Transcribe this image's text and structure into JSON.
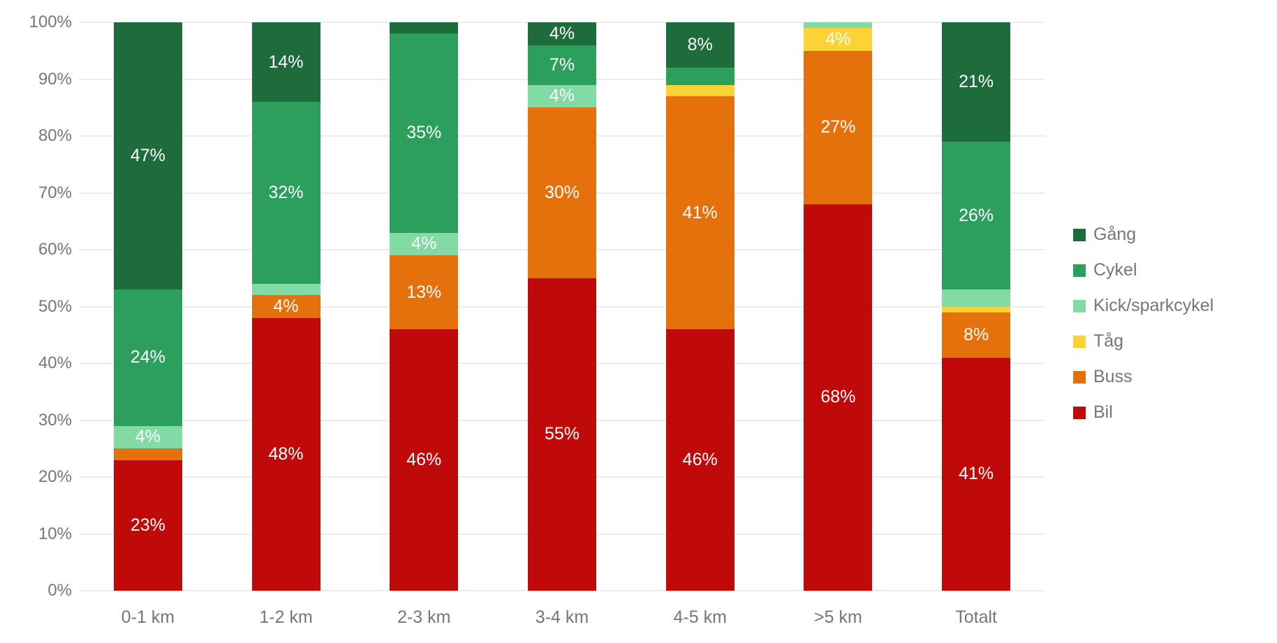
{
  "chart_data": {
    "type": "bar",
    "variant": "stacked-100",
    "title": "",
    "xlabel": "",
    "ylabel": "",
    "ylim": [
      0,
      100
    ],
    "grid": true,
    "legend_position": "right",
    "categories": [
      "0-1 km",
      "1-2 km",
      "2-3 km",
      "3-4 km",
      "4-5 km",
      ">5 km",
      "Totalt"
    ],
    "y_ticks": [
      "0%",
      "10%",
      "20%",
      "30%",
      "40%",
      "50%",
      "60%",
      "70%",
      "80%",
      "90%",
      "100%"
    ],
    "series": [
      {
        "name": "Bil",
        "color": "#c00a0a",
        "values": [
          23,
          48,
          46,
          55,
          46,
          68,
          41
        ]
      },
      {
        "name": "Buss",
        "color": "#e5710d",
        "values": [
          2,
          4,
          13,
          30,
          41,
          27,
          8
        ]
      },
      {
        "name": "Tåg",
        "color": "#ffd335",
        "values": [
          0,
          0,
          0,
          0,
          2,
          4,
          1
        ]
      },
      {
        "name": "Kick/sparkcykel",
        "color": "#82daa5",
        "values": [
          4,
          2,
          4,
          4,
          0,
          1,
          3
        ]
      },
      {
        "name": "Cykel",
        "color": "#2d9f5c",
        "values": [
          24,
          32,
          35,
          7,
          3,
          0,
          26
        ]
      },
      {
        "name": "Gång",
        "color": "#1e6b3c",
        "values": [
          47,
          14,
          2,
          4,
          8,
          0,
          21
        ]
      }
    ],
    "data_label_suffix": "%",
    "data_label_min_value": 4,
    "legend_order": [
      "Gång",
      "Cykel",
      "Kick/sparkcykel",
      "Tåg",
      "Buss",
      "Bil"
    ]
  },
  "colors": {
    "axis_text": "#767676",
    "gridline": "#ececec",
    "data_label": "#ffffff",
    "background": "#ffffff"
  }
}
